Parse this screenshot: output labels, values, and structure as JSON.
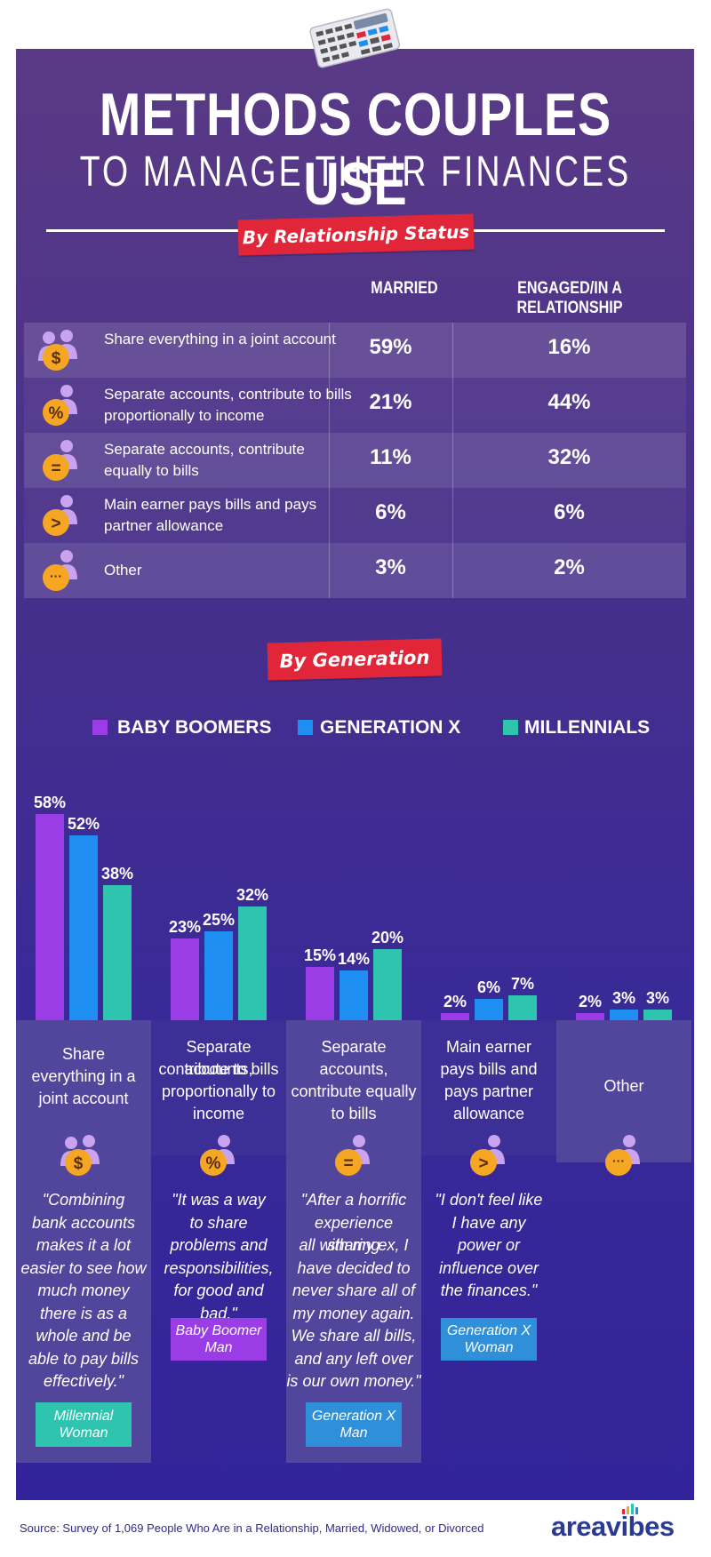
{
  "title_line1": "METHODS COUPLES USE",
  "title_line2": "TO MANAGE THEIR FINANCES",
  "section1_label": "By Relationship Status",
  "columns": [
    "MARRIED",
    "ENGAGED/IN A RELATIONSHIP"
  ],
  "relationship_rows": [
    {
      "label": "Share everything in a joint account",
      "icon": "dollar-couple-icon",
      "icon_symbol": "$",
      "married": "59%",
      "engaged": "16%"
    },
    {
      "label": "Separate accounts, contribute to bills proportionally to income",
      "icon": "percent-couple-icon",
      "icon_symbol": "%",
      "married": "21%",
      "engaged": "44%"
    },
    {
      "label": "Separate accounts, contribute equally to bills",
      "icon": "equals-couple-icon",
      "icon_symbol": "=",
      "married": "11%",
      "engaged": "32%"
    },
    {
      "label": "Main earner pays bills and pays partner allowance",
      "icon": "greater-than-couple-icon",
      "icon_symbol": ">",
      "married": "6%",
      "engaged": "6%"
    },
    {
      "label": "Other",
      "icon": "ellipsis-couple-icon",
      "icon_symbol": "···",
      "married": "3%",
      "engaged": "2%"
    }
  ],
  "section2_label": "By Generation",
  "chart_data": {
    "type": "bar",
    "categories": [
      "Share everything in a joint account",
      "Separate accounts, contribute to bills proportionally to income",
      "Separate accounts, contribute equally to bills",
      "Main earner pays bills and pays partner allowance",
      "Other"
    ],
    "series": [
      {
        "name": "BABY BOOMERS",
        "color": "#9b3de6",
        "values": [
          58,
          23,
          15,
          2,
          2
        ],
        "labels": [
          "58%",
          "23%",
          "15%",
          "2%",
          "2%"
        ]
      },
      {
        "name": "GENERATION X",
        "color": "#1f8ef2",
        "values": [
          52,
          25,
          14,
          6,
          3
        ],
        "labels": [
          "52%",
          "25%",
          "14%",
          "6%",
          "3%"
        ]
      },
      {
        "name": "MILLENNIALS",
        "color": "#2ec4b0",
        "values": [
          38,
          32,
          20,
          7,
          3
        ],
        "labels": [
          "38%",
          "32%",
          "20%",
          "7%",
          "3%"
        ]
      }
    ],
    "ylim": [
      0,
      60
    ],
    "legend": "top",
    "grid": false
  },
  "cards": [
    {
      "title_lines": [
        "Share",
        "everything in a",
        "joint account"
      ],
      "icon_symbol": "$",
      "quote_lines": [
        "\"Combining",
        "bank accounts",
        "makes it a lot",
        "easier to see how",
        "much money",
        "there is as a",
        "whole and be",
        "able to pay bills",
        "effectively.\""
      ],
      "tag_lines": [
        "Millennial",
        "Woman"
      ],
      "tag_color": "#2ec4b0"
    },
    {
      "title_lines": [
        "Separate accounts,",
        "contribute to bills",
        "proportionally to",
        "income"
      ],
      "icon_symbol": "%",
      "quote_lines": [
        "\"It was a way",
        "to share",
        "problems and",
        "responsibilities,",
        "for good and",
        "bad.\""
      ],
      "tag_lines": [
        "Baby Boomer",
        "Man"
      ],
      "tag_color": "#9b3de6"
    },
    {
      "title_lines": [
        "Separate",
        "accounts,",
        "contribute equally",
        "to bills"
      ],
      "icon_symbol": "=",
      "quote_lines": [
        "\"After a horrific",
        "experience sharing",
        "all with my ex, I",
        "have decided to",
        "never share all of",
        "my money again.",
        "We share all bills,",
        "and any left over",
        "is our own money.\""
      ],
      "tag_lines": [
        "Generation X",
        "Man"
      ],
      "tag_color": "#2f8fd8"
    },
    {
      "title_lines": [
        "Main earner",
        "pays bills and",
        "pays partner",
        "allowance"
      ],
      "icon_symbol": ">",
      "quote_lines": [
        "\"I don't feel like",
        "I have any",
        "power or",
        "influence over",
        "the finances.\""
      ],
      "tag_lines": [
        "Generation X",
        "Woman"
      ],
      "tag_color": "#2f8fd8"
    },
    {
      "title_lines": [
        "Other"
      ],
      "icon_symbol": "···",
      "quote_lines": [],
      "tag_lines": [],
      "tag_color": "#2f8fd8"
    }
  ],
  "source": "Source: Survey of 1,069 People Who Are in a Relationship, Married, Widowed, or Divorced",
  "logo": "areavibes",
  "colors": {
    "accent_red": "#e2263a",
    "icon_purple": "#c9a3f0",
    "icon_orange": "#f5a623"
  }
}
